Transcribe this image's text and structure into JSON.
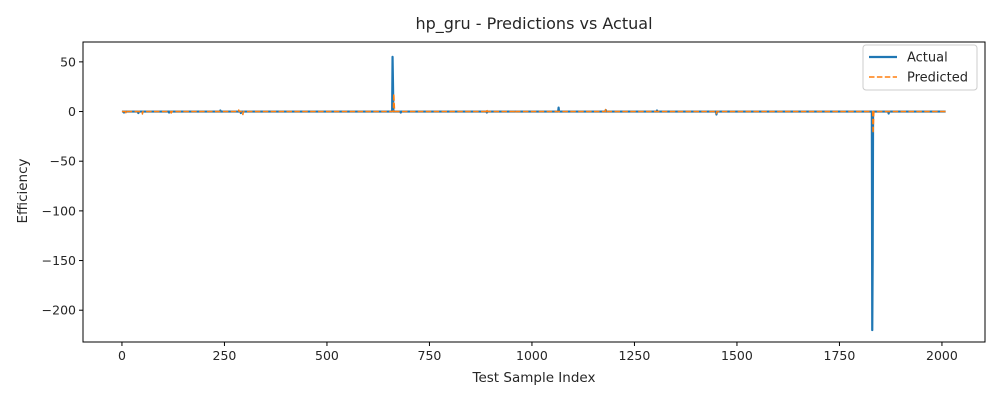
{
  "chart_data": {
    "type": "line",
    "title": "hp_gru - Predictions vs Actual",
    "xlabel": "Test Sample Index",
    "ylabel": "Efficiency",
    "xlim": [
      -95,
      2105
    ],
    "ylim": [
      -232,
      70
    ],
    "x_ticks": [
      0,
      250,
      500,
      750,
      1000,
      1250,
      1500,
      1750,
      2000
    ],
    "y_ticks": [
      50,
      0,
      -50,
      -100,
      -150,
      -200
    ],
    "x_tick_labels": [
      "0",
      "250",
      "500",
      "750",
      "1000",
      "1250",
      "1500",
      "1750",
      "2000"
    ],
    "y_tick_labels": [
      "50",
      "0",
      "−50",
      "−100",
      "−150",
      "−200"
    ],
    "grid": false,
    "legend_position": "top-right",
    "n_points": 2010,
    "series": [
      {
        "name": "Actual",
        "color": "#1f77b4",
        "style": "solid",
        "baseline": 0,
        "spikes": [
          [
            5,
            -1
          ],
          [
            40,
            -1.5
          ],
          [
            115,
            -1
          ],
          [
            240,
            1
          ],
          [
            290,
            -1.5
          ],
          [
            660,
            55
          ],
          [
            661,
            30
          ],
          [
            680,
            -1
          ],
          [
            890,
            -1
          ],
          [
            1065,
            4
          ],
          [
            1180,
            1.5
          ],
          [
            1305,
            1
          ],
          [
            1450,
            -3
          ],
          [
            1830,
            -220
          ],
          [
            1831,
            -150
          ],
          [
            1870,
            -2
          ]
        ]
      },
      {
        "name": "Predicted",
        "color": "#ff7f0e",
        "style": "dashed",
        "baseline": 0,
        "spikes": [
          [
            10,
            -2
          ],
          [
            50,
            -2.5
          ],
          [
            120,
            -1.5
          ],
          [
            285,
            1.5
          ],
          [
            295,
            -3
          ],
          [
            663,
            18
          ],
          [
            664,
            8
          ],
          [
            890,
            2
          ],
          [
            960,
            -1.5
          ],
          [
            1180,
            2
          ],
          [
            1450,
            -2
          ],
          [
            1832,
            -22
          ],
          [
            1833,
            -10
          ]
        ]
      }
    ]
  }
}
